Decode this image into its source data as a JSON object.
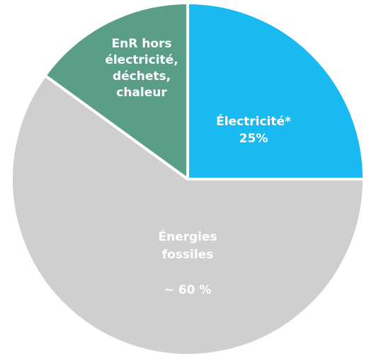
{
  "chart_data": {
    "type": "pie",
    "categories": [
      [
        "Électricité*"
      ],
      [
        "Énergies",
        "fossiles"
      ],
      [
        "EnR hors",
        "électricité,",
        "déchets,",
        "chaleur"
      ]
    ],
    "values": [
      25,
      60,
      15
    ],
    "value_labels": [
      "25%",
      "~ 60 %",
      null
    ],
    "colors": [
      "#19b9f1",
      "#cfcfcf",
      "#5b9e87"
    ]
  }
}
